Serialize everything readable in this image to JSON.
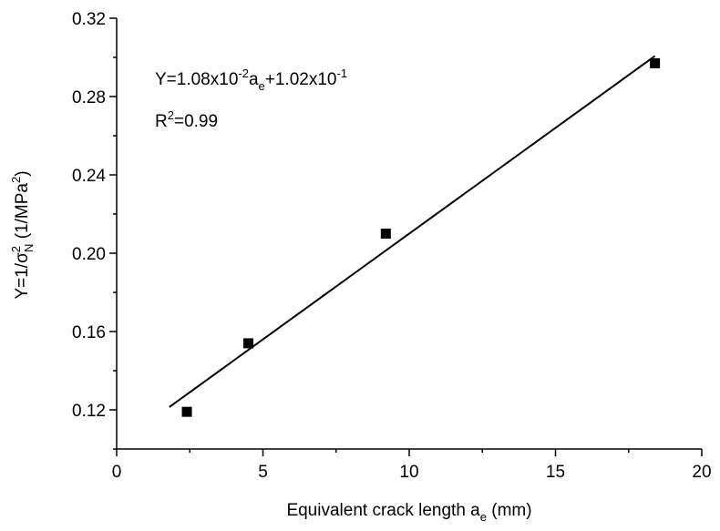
{
  "chart_data": {
    "type": "scatter",
    "xlabel": "Equivalent crack length a",
    "xlabel_sub": "e",
    "xlabel_unit": " (mm)",
    "ylabel_parts": {
      "pre": "Y=1/σ",
      "sup": "2",
      "sub": "N",
      "mid": " (1/MPa",
      "sup2": "2",
      "post": ")"
    },
    "xlim": [
      0,
      20
    ],
    "ylim": [
      0.1,
      0.32
    ],
    "x_ticks": [
      0,
      5,
      10,
      15,
      20
    ],
    "x_tick_labels": [
      "0",
      "5",
      "10",
      "15",
      "20"
    ],
    "y_ticks": [
      0.12,
      0.16,
      0.2,
      0.24,
      0.28,
      0.32
    ],
    "y_tick_labels": [
      "0.12",
      "0.16",
      "0.20",
      "0.24",
      "0.28",
      "0.32"
    ],
    "x_minor_step": 2.5,
    "y_minor_step": 0.02,
    "grid": false,
    "series": [
      {
        "marker": "square",
        "x": [
          2.4,
          4.5,
          9.2,
          18.4
        ],
        "y": [
          0.119,
          0.154,
          0.21,
          0.297
        ]
      }
    ],
    "fit_line": {
      "slope": 0.0108,
      "intercept": 0.102,
      "x_range": [
        1.8,
        18.4
      ]
    },
    "annotation": {
      "equation": {
        "p1": "Y=1.08x10",
        "s1": "-2",
        "p2": "a",
        "s2": "e",
        "p3": "+1.02x10",
        "s3": "-1"
      },
      "r2": {
        "p1": "R",
        "s1": "2",
        "p2": "=0.99"
      }
    },
    "colors": {
      "marker": "#000000",
      "line": "#000000",
      "axis": "#000000"
    }
  }
}
